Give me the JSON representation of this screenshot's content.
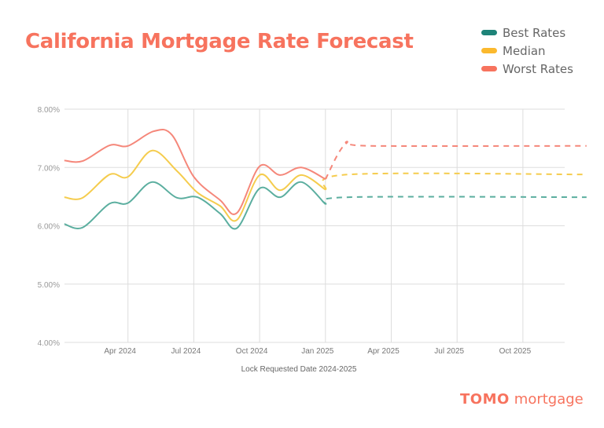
{
  "chart_data": {
    "type": "line",
    "title": "California Mortgage Rate Forecast",
    "xlabel": "Lock Requested Date 2024-2025",
    "ylabel": "",
    "ylim": [
      4,
      8
    ],
    "y_ticks": [
      "4.00%",
      "5.00%",
      "6.00%",
      "7.00%",
      "8.00%"
    ],
    "x_ticks": [
      "Apr 2024",
      "Jul 2024",
      "Oct 2024",
      "Jan 2025",
      "Apr 2025",
      "Jul 2025",
      "Oct 2025"
    ],
    "grid": true,
    "legend_position": "top-right",
    "forecast_start": "2025-01-01",
    "series": [
      {
        "name": "Best Rates",
        "color": "#1E8378",
        "line_color": "#5BAE9F",
        "points": [
          [
            "2024-01-04",
            6.03
          ],
          [
            "2024-01-29",
            5.97
          ],
          [
            "2024-03-06",
            6.38
          ],
          [
            "2024-04-01",
            6.39
          ],
          [
            "2024-05-04",
            6.75
          ],
          [
            "2024-06-08",
            6.48
          ],
          [
            "2024-07-06",
            6.49
          ],
          [
            "2024-08-07",
            6.21
          ],
          [
            "2024-08-30",
            5.96
          ],
          [
            "2024-10-01",
            6.64
          ],
          [
            "2024-10-29",
            6.49
          ],
          [
            "2024-11-28",
            6.75
          ],
          [
            "2025-01-01",
            6.37
          ],
          [
            "2025-02-03",
            6.49
          ],
          [
            "2025-12-28",
            6.49
          ]
        ]
      },
      {
        "name": "Median",
        "color": "#FBB92E",
        "line_color": "#F5CC4D",
        "points": [
          [
            "2024-01-04",
            6.49
          ],
          [
            "2024-01-29",
            6.48
          ],
          [
            "2024-03-06",
            6.88
          ],
          [
            "2024-04-01",
            6.84
          ],
          [
            "2024-05-04",
            7.29
          ],
          [
            "2024-06-08",
            6.94
          ],
          [
            "2024-07-06",
            6.57
          ],
          [
            "2024-08-07",
            6.34
          ],
          [
            "2024-08-30",
            6.1
          ],
          [
            "2024-10-01",
            6.87
          ],
          [
            "2024-10-29",
            6.61
          ],
          [
            "2024-11-28",
            6.87
          ],
          [
            "2025-01-01",
            6.62
          ],
          [
            "2025-02-03",
            6.88
          ],
          [
            "2025-12-28",
            6.88
          ]
        ]
      },
      {
        "name": "Worst Rates",
        "color": "#F7735E",
        "line_color": "#F5877A",
        "points": [
          [
            "2024-01-04",
            7.12
          ],
          [
            "2024-01-29",
            7.11
          ],
          [
            "2024-03-06",
            7.38
          ],
          [
            "2024-04-01",
            7.37
          ],
          [
            "2024-05-06",
            7.62
          ],
          [
            "2024-06-01",
            7.56
          ],
          [
            "2024-07-01",
            6.84
          ],
          [
            "2024-08-07",
            6.44
          ],
          [
            "2024-08-30",
            6.22
          ],
          [
            "2024-10-01",
            7.02
          ],
          [
            "2024-10-29",
            6.87
          ],
          [
            "2024-11-28",
            7.0
          ],
          [
            "2025-01-01",
            6.8
          ],
          [
            "2025-01-29",
            7.41
          ],
          [
            "2025-03-02",
            7.37
          ],
          [
            "2025-12-28",
            7.37
          ]
        ]
      }
    ]
  },
  "brand": {
    "logo_bold": "TOMO",
    "logo_rest": "mortgage"
  }
}
